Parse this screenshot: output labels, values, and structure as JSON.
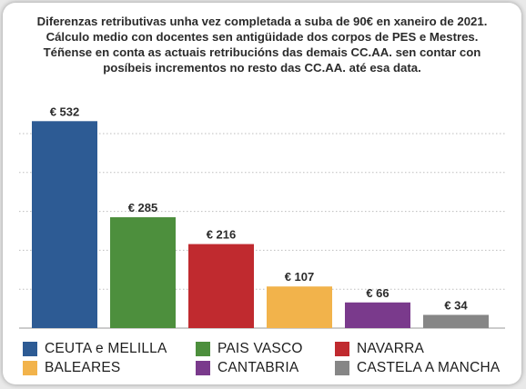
{
  "chart_data": {
    "type": "bar",
    "title_lines": [
      "Diferenzas retributivas unha vez completada a suba de 90€ en xaneiro de 2021.",
      "Cálculo medio con docentes sen antigüidade dos corpos de PES e Mestres.",
      "Téñense en conta as actuais retribucións das demais CC.AA. sen contar con",
      "posíbeis incrementos no resto das CC.AA. até esa data."
    ],
    "categories": [
      "CEUTA e MELILLA",
      "PAIS VASCO",
      "NAVARRA",
      "BALEARES",
      "CANTABRIA",
      "CASTELA A MANCHA"
    ],
    "values": [
      532,
      285,
      216,
      107,
      66,
      34
    ],
    "data_labels": [
      "€ 532",
      "€ 285",
      "€ 216",
      "€ 107",
      "€ 66",
      "€ 34"
    ],
    "colors": [
      "#2d5b94",
      "#4d8f3d",
      "#c02a2f",
      "#f2b34b",
      "#7a3a8c",
      "#868686"
    ],
    "ylim": [
      0,
      600
    ],
    "y_gridlines": [
      100,
      200,
      300,
      400,
      500
    ],
    "grid": "horizontal-dotted",
    "legend_placement": "bottom",
    "xlabel": "",
    "ylabel": ""
  }
}
